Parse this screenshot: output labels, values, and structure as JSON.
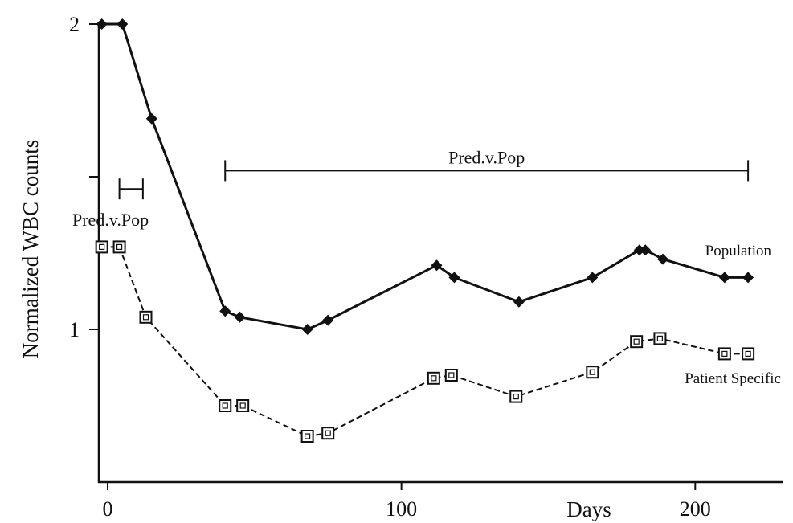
{
  "chart_data": {
    "type": "line",
    "title": "",
    "xlabel": "Days",
    "ylabel": "Normalized WBC counts",
    "xlim": [
      -3,
      230
    ],
    "ylim": [
      0.5,
      2
    ],
    "x_ticks": [
      0,
      100,
      200
    ],
    "x_tick_labels": [
      "0",
      "100",
      "200"
    ],
    "y_ticks": [
      1,
      1.5,
      2
    ],
    "y_tick_labels": [
      "1",
      "",
      "2"
    ],
    "grid": false,
    "series": [
      {
        "name": "Population",
        "marker": "diamond",
        "line_style": "solid",
        "x": [
          -2,
          5,
          15,
          40,
          45,
          68,
          75,
          112,
          118,
          140,
          165,
          181,
          183,
          189,
          210,
          218
        ],
        "y": [
          2,
          2,
          1.69,
          1.06,
          1.04,
          1.0,
          1.03,
          1.21,
          1.17,
          1.09,
          1.17,
          1.26,
          1.26,
          1.23,
          1.17,
          1.17
        ]
      },
      {
        "name": "Patient Specific",
        "marker": "square",
        "line_style": "dashed",
        "x": [
          -2,
          4,
          13,
          40,
          46,
          68,
          75,
          111,
          117,
          139,
          165,
          180,
          188,
          210,
          218
        ],
        "y": [
          1.27,
          1.27,
          1.04,
          0.75,
          0.75,
          0.65,
          0.66,
          0.84,
          0.85,
          0.78,
          0.86,
          0.96,
          0.97,
          0.92,
          0.92
        ]
      }
    ],
    "annotations": [
      {
        "text": "Pred.v.Pop",
        "x_start": 4,
        "x_end": 12,
        "y": 1.46
      },
      {
        "text": "Pred.v.Pop",
        "x_start": 40,
        "x_end": 218,
        "y": 1.52
      }
    ]
  }
}
